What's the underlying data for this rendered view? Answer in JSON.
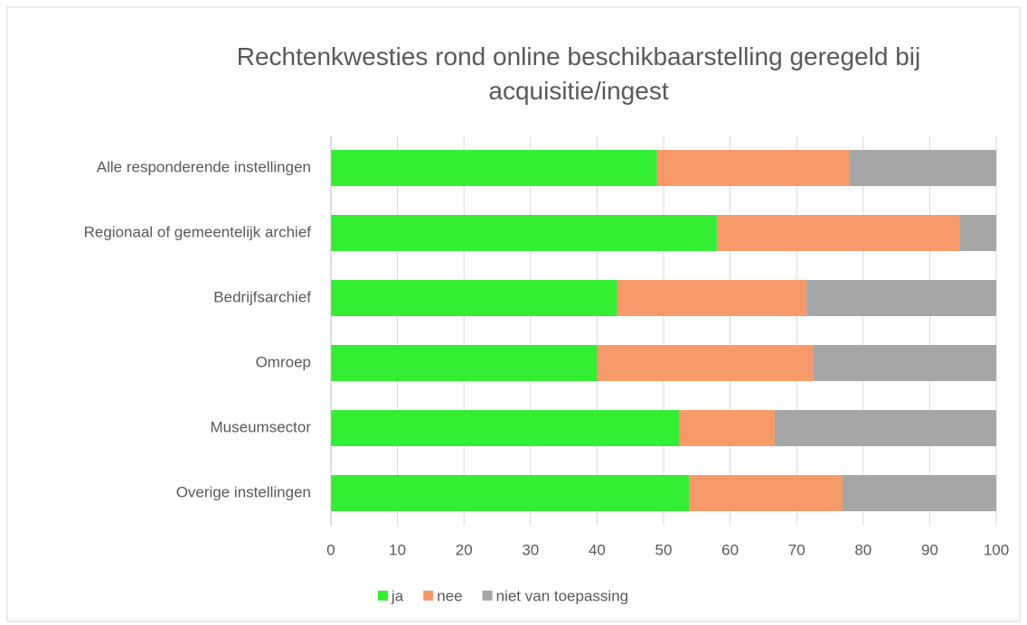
{
  "chart_data": {
    "type": "bar",
    "orientation": "horizontal",
    "stacked": true,
    "title": "Rechtenkwesties rond online beschikbaarstelling geregeld bij acquisitie/ingest",
    "categories": [
      "Alle responderende instellingen",
      "Regionaal of gemeentelijk archief",
      "Bedrijfsarchief",
      "Omroep",
      "Museumsector",
      "Overige instellingen"
    ],
    "series": [
      {
        "name": "ja",
        "color": "#33ee33",
        "values": [
          49,
          58,
          43,
          40,
          52.4,
          53.8
        ]
      },
      {
        "name": "nee",
        "color": "#f79a6a",
        "values": [
          29,
          36.5,
          28.5,
          32.5,
          14.3,
          23.1
        ]
      },
      {
        "name": "niet van toepassing",
        "color": "#a6a6a6",
        "values": [
          22,
          5.5,
          28.5,
          27.5,
          33.3,
          23.1
        ]
      }
    ],
    "xlim": [
      0,
      100
    ],
    "xticks": [
      0,
      10,
      20,
      30,
      40,
      50,
      60,
      70,
      80,
      90,
      100
    ],
    "grid": true,
    "legend": "bottom"
  }
}
